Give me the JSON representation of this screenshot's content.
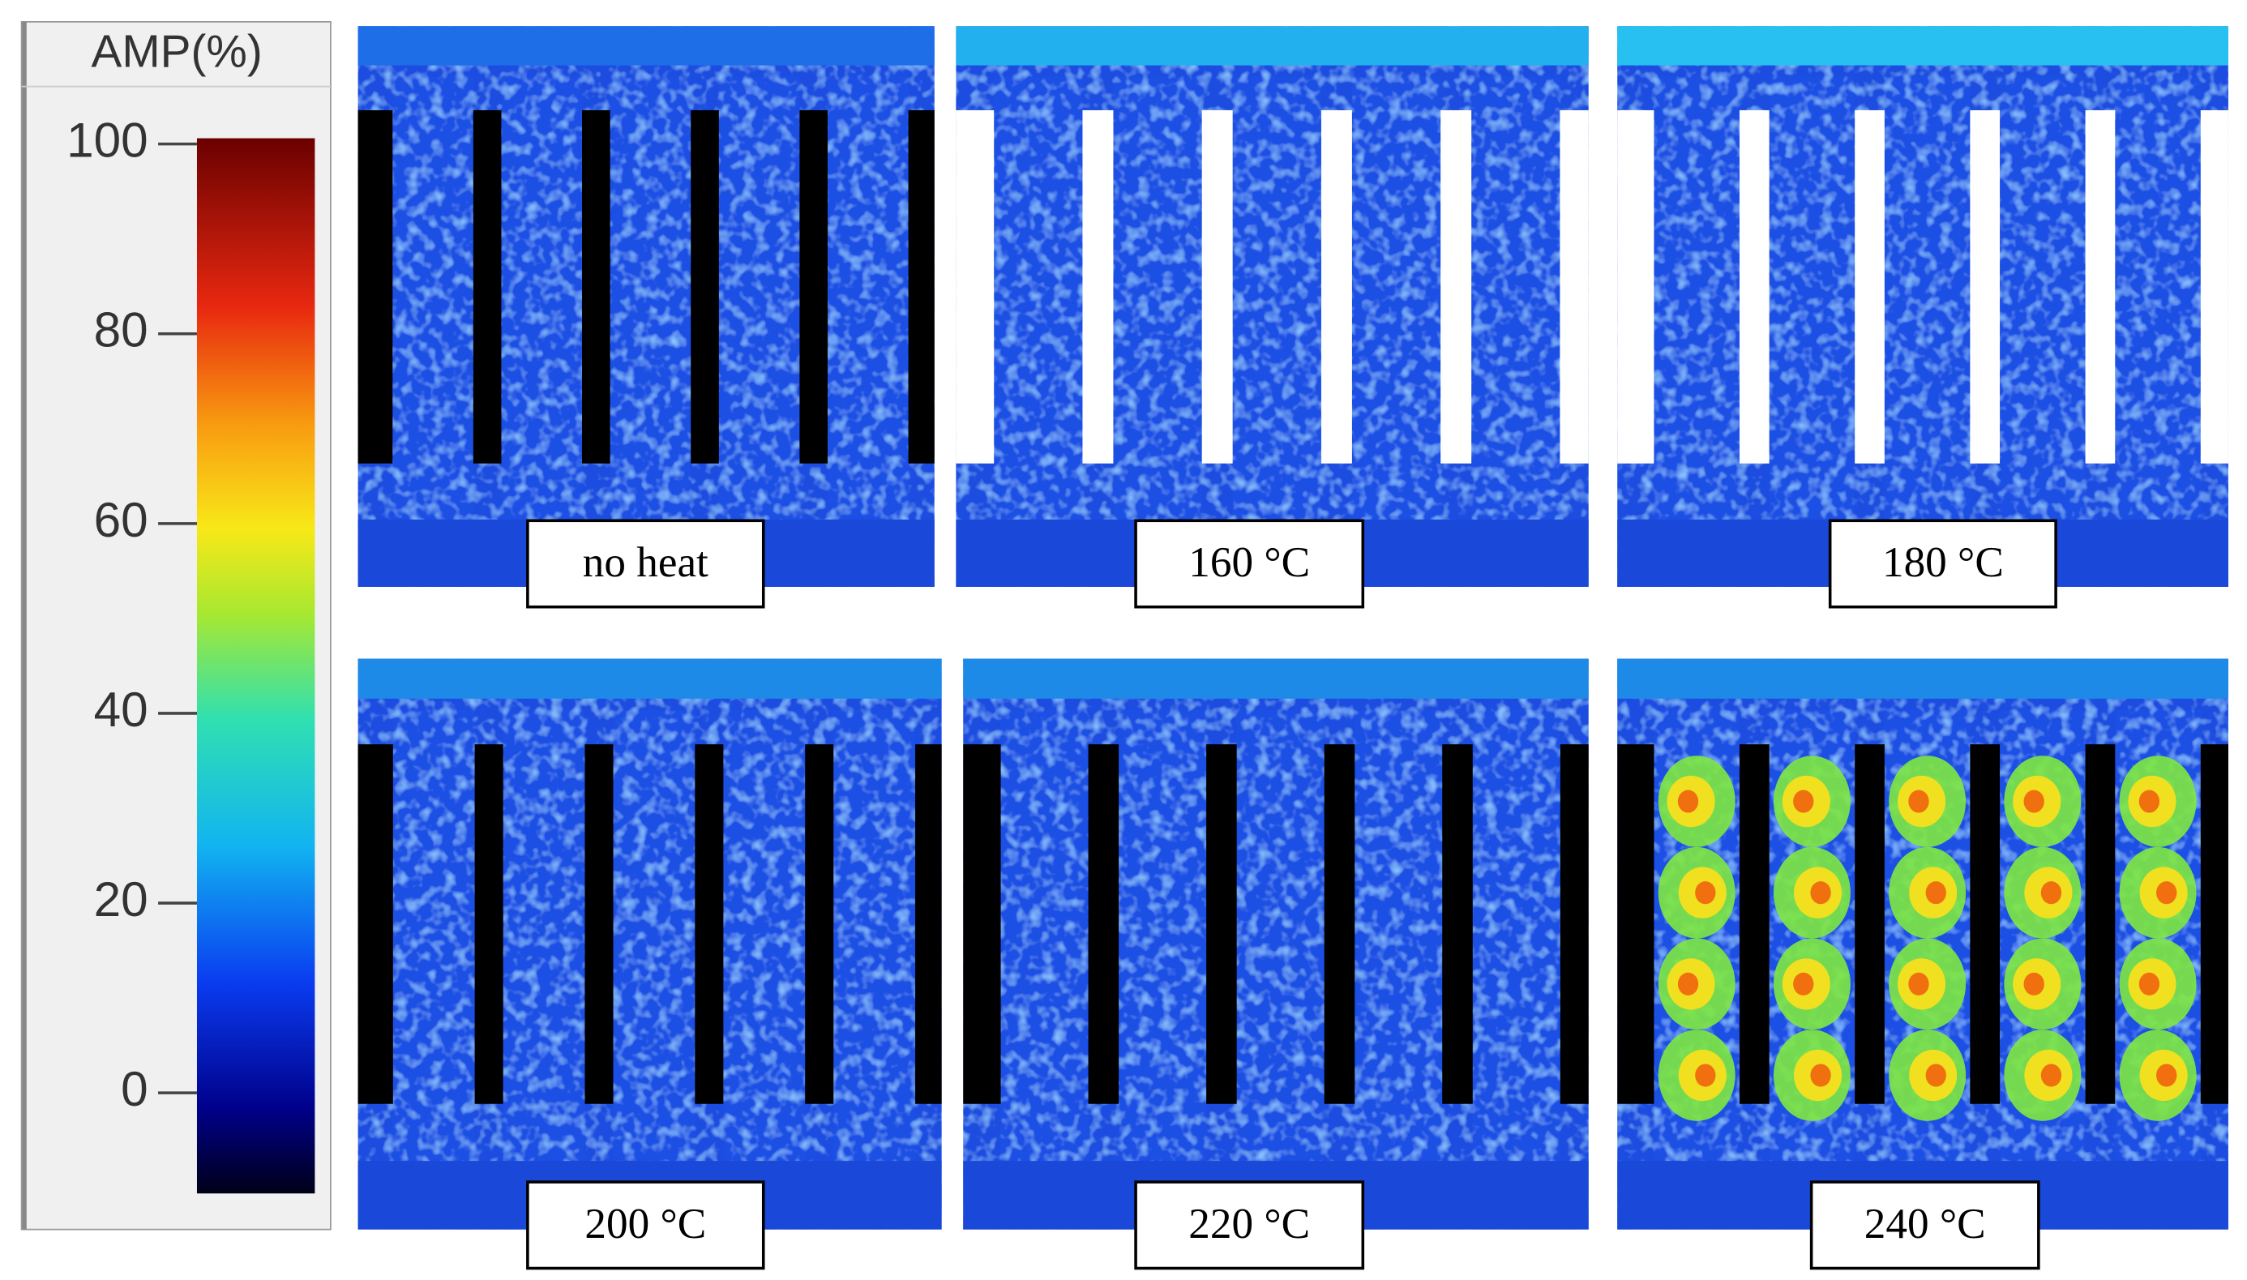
{
  "colorbar": {
    "title": "AMP(%)",
    "ticks": [
      0,
      20,
      40,
      60,
      80,
      100
    ],
    "range": [
      -10.6,
      100
    ]
  },
  "panels": [
    {
      "label": "no heat"
    },
    {
      "label": "160 °C"
    },
    {
      "label": "180 °C"
    },
    {
      "label": "200 °C"
    },
    {
      "label": "220 °C"
    },
    {
      "label": "240 °C"
    }
  ]
}
